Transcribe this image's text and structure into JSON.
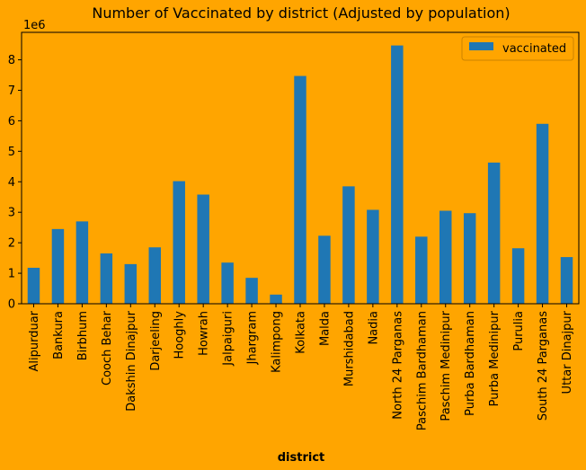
{
  "chart_data": {
    "type": "bar",
    "title": "Number of Vaccinated by district (Adjusted by population)",
    "xlabel": "district",
    "ylabel": "",
    "offset_label": "1e6",
    "ylim": [
      0,
      8.9
    ],
    "yticks": [
      0,
      1,
      2,
      3,
      4,
      5,
      6,
      7,
      8
    ],
    "legend_position": "top-right",
    "categories": [
      "Alipurduar",
      "Bankura",
      "Birbhum",
      "Cooch Behar",
      "Dakshin Dinajpur",
      "Darjeeling",
      "Hooghly",
      "Howrah",
      "Jalpaiguri",
      "Jhargram",
      "Kalimpong",
      "Kolkata",
      "Malda",
      "Murshidabad",
      "Nadia",
      "North 24 Parganas",
      "Paschim Bardhaman",
      "Paschim Medinipur",
      "Purba Bardhaman",
      "Purba Medinipur",
      "Purulia",
      "South 24 Parganas",
      "Uttar Dinajpur"
    ],
    "series": [
      {
        "name": "vaccinated",
        "color": "#1f77b4",
        "values": [
          1.18,
          2.45,
          2.7,
          1.65,
          1.3,
          1.85,
          4.02,
          3.58,
          1.35,
          0.85,
          0.3,
          7.47,
          2.23,
          3.85,
          3.08,
          8.47,
          2.2,
          3.05,
          2.97,
          4.63,
          1.82,
          5.9,
          1.53
        ]
      }
    ]
  }
}
